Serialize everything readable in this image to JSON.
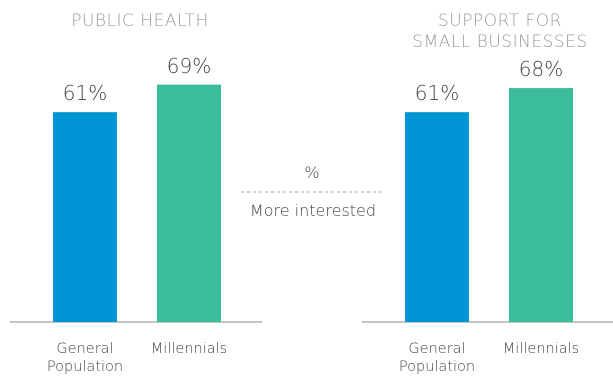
{
  "chart_data": [
    {
      "type": "bar",
      "title": "PUBLIC HEALTH",
      "categories": [
        "General\nPopulation",
        "Millennials"
      ],
      "values": [
        61,
        69
      ],
      "value_labels": [
        "61%",
        "69%"
      ],
      "colors": [
        "#0096d6",
        "#3bbc9b"
      ],
      "ylim": [
        0,
        100
      ]
    },
    {
      "type": "bar",
      "title": "SUPPORT FOR\nSMALL BUSINESSES",
      "categories": [
        "General\nPopulation",
        "Millennials"
      ],
      "values": [
        61,
        68
      ],
      "value_labels": [
        "61%",
        "68%"
      ],
      "colors": [
        "#0096d6",
        "#3bbc9b"
      ],
      "ylim": [
        0,
        100
      ]
    }
  ],
  "legend": {
    "symbol": "%",
    "text": "More interested"
  }
}
